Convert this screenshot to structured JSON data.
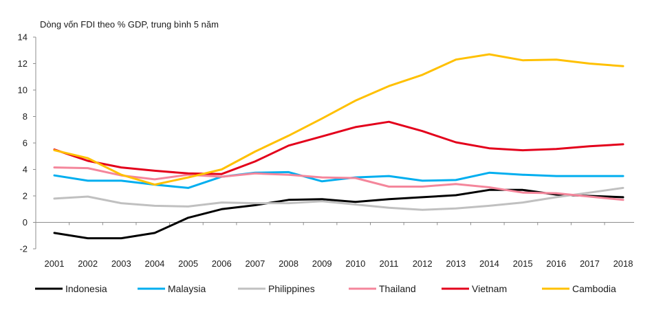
{
  "chart_data": {
    "type": "line",
    "title": "Dòng vốn FDI theo % GDP, trung bình 5 năm",
    "xlabel": "",
    "ylabel": "",
    "x": [
      "2001",
      "2002",
      "2003",
      "2004",
      "2005",
      "2006",
      "2007",
      "2008",
      "2009",
      "2010",
      "2011",
      "2012",
      "2013",
      "2014",
      "2015",
      "2016",
      "2017",
      "2018"
    ],
    "ylim": [
      -2,
      14
    ],
    "yticks": [
      -2,
      0,
      2,
      4,
      6,
      8,
      10,
      12,
      14
    ],
    "grid": false,
    "legend": "bottom",
    "series": [
      {
        "name": "Indonesia",
        "color": "#000000",
        "values": [
          -0.8,
          -1.2,
          -1.2,
          -0.8,
          0.35,
          1.0,
          1.3,
          1.7,
          1.75,
          1.55,
          1.75,
          1.9,
          2.05,
          2.45,
          2.45,
          2.1,
          2.0,
          1.9
        ]
      },
      {
        "name": "Malaysia",
        "color": "#00aeef",
        "values": [
          3.55,
          3.15,
          3.15,
          2.85,
          2.6,
          3.45,
          3.75,
          3.8,
          3.1,
          3.4,
          3.5,
          3.15,
          3.2,
          3.75,
          3.6,
          3.5,
          3.5,
          3.5
        ]
      },
      {
        "name": "Philippines",
        "color": "#c0c0c0",
        "values": [
          1.8,
          1.95,
          1.45,
          1.25,
          1.2,
          1.5,
          1.45,
          1.45,
          1.6,
          1.35,
          1.1,
          0.95,
          1.05,
          1.25,
          1.5,
          1.9,
          2.25,
          2.6
        ]
      },
      {
        "name": "Thailand",
        "color": "#f4869b",
        "values": [
          4.15,
          4.1,
          3.55,
          3.25,
          3.6,
          3.45,
          3.7,
          3.6,
          3.4,
          3.35,
          2.7,
          2.7,
          2.9,
          2.65,
          2.25,
          2.2,
          1.95,
          1.7
        ]
      },
      {
        "name": "Vietnam",
        "color": "#e3001b",
        "values": [
          5.5,
          4.65,
          4.15,
          3.9,
          3.7,
          3.65,
          4.6,
          5.8,
          6.5,
          7.2,
          7.6,
          6.9,
          6.05,
          5.6,
          5.45,
          5.55,
          5.75,
          5.9
        ]
      },
      {
        "name": "Cambodia",
        "color": "#ffc000",
        "values": [
          5.45,
          4.85,
          3.6,
          2.85,
          3.4,
          4.0,
          5.35,
          6.55,
          7.85,
          9.2,
          10.3,
          11.15,
          12.3,
          12.7,
          12.25,
          12.3,
          12.0,
          11.8
        ]
      }
    ]
  }
}
